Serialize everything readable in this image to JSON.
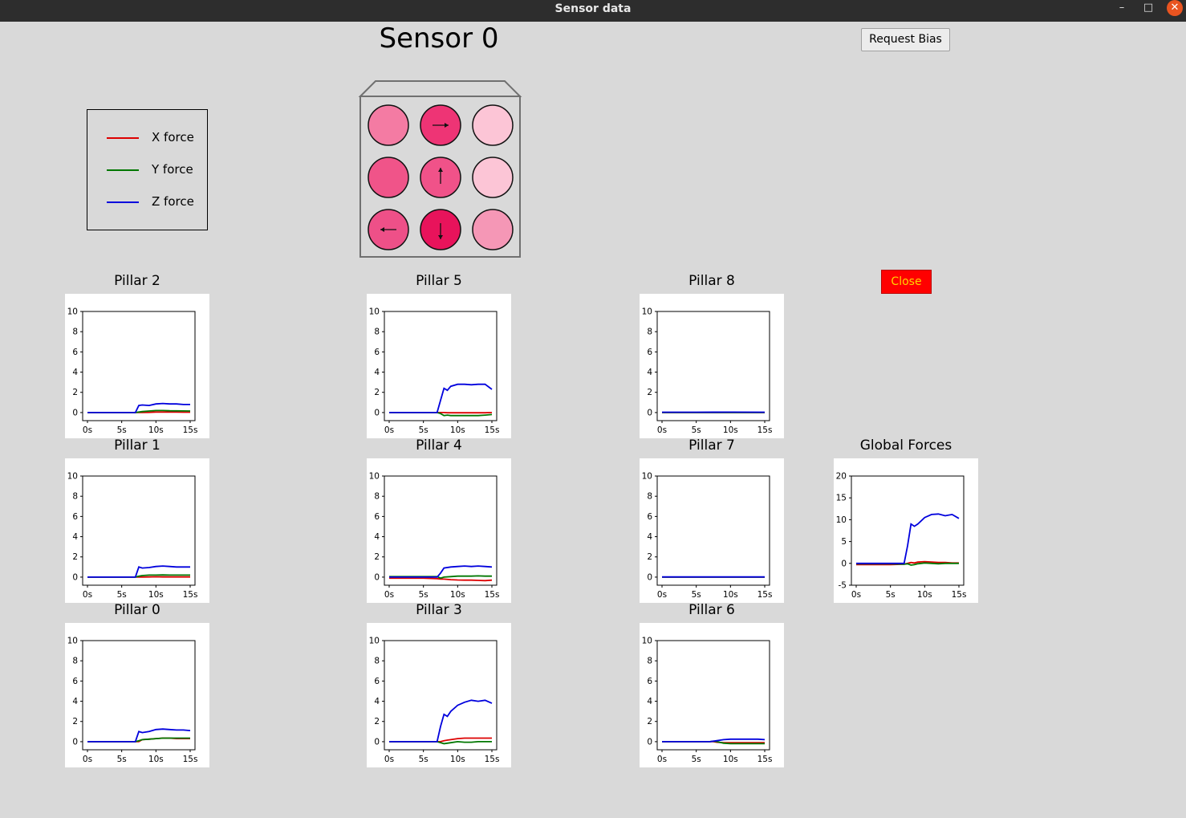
{
  "window": {
    "title": "Sensor data",
    "minimize": "–",
    "maximize": "□",
    "close": "✕"
  },
  "header": {
    "title": "Sensor 0",
    "bias_button": "Request Bias",
    "close_button": "Close"
  },
  "legend": [
    {
      "label": "X force",
      "color": "#dd0000"
    },
    {
      "label": "Y force",
      "color": "#007700"
    },
    {
      "label": "Z force",
      "color": "#0000dd"
    }
  ],
  "pillar_grid": {
    "cells": [
      {
        "row": 0,
        "col": 0,
        "color": "#f47ba3",
        "arrow": "none"
      },
      {
        "row": 0,
        "col": 1,
        "color": "#ee3475",
        "arrow": "right"
      },
      {
        "row": 0,
        "col": 2,
        "color": "#fcc5d6",
        "arrow": "none"
      },
      {
        "row": 1,
        "col": 0,
        "color": "#f05489",
        "arrow": "none"
      },
      {
        "row": 1,
        "col": 1,
        "color": "#f05289",
        "arrow": "up"
      },
      {
        "row": 1,
        "col": 2,
        "color": "#fcc5d6",
        "arrow": "none"
      },
      {
        "row": 2,
        "col": 0,
        "color": "#ee5088",
        "arrow": "left"
      },
      {
        "row": 2,
        "col": 1,
        "color": "#e8135b",
        "arrow": "down"
      },
      {
        "row": 2,
        "col": 2,
        "color": "#f597b6",
        "arrow": "none"
      }
    ]
  },
  "chart_data": [
    {
      "id": "pillar-2",
      "title": "Pillar 2",
      "type": "line",
      "x": [
        0,
        5,
        7,
        7.5,
        8,
        9,
        10,
        11,
        12,
        13,
        14,
        15
      ],
      "xticks": [
        "0s",
        "5s",
        "10s",
        "15s"
      ],
      "ylim": [
        -0.8,
        10
      ],
      "yticks": [
        0,
        2,
        4,
        6,
        8,
        10
      ],
      "series": [
        {
          "color": "#dd0000",
          "values": [
            0,
            0,
            0,
            0,
            0,
            0.02,
            0.05,
            0.05,
            0.04,
            0.04,
            0.03,
            0.03
          ]
        },
        {
          "color": "#007700",
          "values": [
            0,
            0,
            0,
            0.05,
            0.1,
            0.15,
            0.2,
            0.2,
            0.18,
            0.17,
            0.16,
            0.15
          ]
        },
        {
          "color": "#0000dd",
          "values": [
            0,
            0,
            0,
            0.7,
            0.75,
            0.7,
            0.85,
            0.9,
            0.85,
            0.85,
            0.8,
            0.8
          ]
        }
      ]
    },
    {
      "id": "pillar-5",
      "title": "Pillar 5",
      "type": "line",
      "x": [
        0,
        5,
        7,
        7.5,
        8,
        8.5,
        9,
        10,
        11,
        12,
        13,
        14,
        15
      ],
      "xticks": [
        "0s",
        "5s",
        "10s",
        "15s"
      ],
      "ylim": [
        -0.8,
        10
      ],
      "yticks": [
        0,
        2,
        4,
        6,
        8,
        10
      ],
      "series": [
        {
          "color": "#dd0000",
          "values": [
            0,
            0,
            0,
            0,
            0,
            -0.02,
            -0.02,
            -0.02,
            -0.02,
            -0.02,
            -0.02,
            -0.02,
            0
          ]
        },
        {
          "color": "#007700",
          "values": [
            0,
            0,
            0,
            -0.1,
            -0.3,
            -0.25,
            -0.3,
            -0.3,
            -0.3,
            -0.3,
            -0.3,
            -0.25,
            -0.2
          ]
        },
        {
          "color": "#0000dd",
          "values": [
            0,
            0,
            0,
            1.2,
            2.4,
            2.2,
            2.6,
            2.8,
            2.8,
            2.75,
            2.8,
            2.8,
            2.3
          ]
        }
      ]
    },
    {
      "id": "pillar-8",
      "title": "Pillar 8",
      "type": "line",
      "x": [
        0,
        5,
        10,
        15
      ],
      "xticks": [
        "0s",
        "5s",
        "10s",
        "15s"
      ],
      "ylim": [
        -0.8,
        10
      ],
      "yticks": [
        0,
        2,
        4,
        6,
        8,
        10
      ],
      "series": [
        {
          "color": "#dd0000",
          "values": [
            0,
            0,
            0,
            0
          ]
        },
        {
          "color": "#007700",
          "values": [
            0,
            0,
            0,
            0
          ]
        },
        {
          "color": "#0000dd",
          "values": [
            0.03,
            0.03,
            0.04,
            0.03
          ]
        }
      ]
    },
    {
      "id": "pillar-1",
      "title": "Pillar 1",
      "type": "line",
      "x": [
        0,
        5,
        7,
        7.5,
        8,
        9,
        10,
        11,
        12,
        13,
        14,
        15
      ],
      "xticks": [
        "0s",
        "5s",
        "10s",
        "15s"
      ],
      "ylim": [
        -0.8,
        10
      ],
      "yticks": [
        0,
        2,
        4,
        6,
        8,
        10
      ],
      "series": [
        {
          "color": "#dd0000",
          "values": [
            0,
            0,
            0,
            0,
            0,
            0.02,
            0.03,
            0.02,
            0.02,
            0.02,
            0.02,
            0.02
          ]
        },
        {
          "color": "#007700",
          "values": [
            0,
            0,
            0,
            0.1,
            0.15,
            0.2,
            0.2,
            0.22,
            0.2,
            0.2,
            0.2,
            0.2
          ]
        },
        {
          "color": "#0000dd",
          "values": [
            0,
            0,
            0,
            1.0,
            0.9,
            0.95,
            1.05,
            1.1,
            1.05,
            1.0,
            1.0,
            1.0
          ]
        }
      ]
    },
    {
      "id": "pillar-4",
      "title": "Pillar 4",
      "type": "line",
      "x": [
        0,
        5,
        7,
        7.5,
        8,
        9,
        10,
        11,
        12,
        13,
        14,
        15
      ],
      "xticks": [
        "0s",
        "5s",
        "10s",
        "15s"
      ],
      "ylim": [
        -0.8,
        10
      ],
      "yticks": [
        0,
        2,
        4,
        6,
        8,
        10
      ],
      "series": [
        {
          "color": "#dd0000",
          "values": [
            -0.1,
            -0.1,
            -0.15,
            -0.2,
            -0.2,
            -0.25,
            -0.28,
            -0.3,
            -0.3,
            -0.32,
            -0.35,
            -0.3
          ]
        },
        {
          "color": "#007700",
          "values": [
            0.05,
            0.05,
            0.05,
            -0.1,
            0,
            0.05,
            0.1,
            0.1,
            0.1,
            0.12,
            0.1,
            0.1
          ]
        },
        {
          "color": "#0000dd",
          "values": [
            0,
            0,
            0,
            0.4,
            0.9,
            1.0,
            1.05,
            1.1,
            1.05,
            1.1,
            1.05,
            1.0
          ]
        }
      ]
    },
    {
      "id": "pillar-7",
      "title": "Pillar 7",
      "type": "line",
      "x": [
        0,
        5,
        10,
        15
      ],
      "xticks": [
        "0s",
        "5s",
        "10s",
        "15s"
      ],
      "ylim": [
        -0.8,
        10
      ],
      "yticks": [
        0,
        2,
        4,
        6,
        8,
        10
      ],
      "series": [
        {
          "color": "#dd0000",
          "values": [
            0,
            0,
            0,
            0
          ]
        },
        {
          "color": "#007700",
          "values": [
            0,
            0,
            0,
            0
          ]
        },
        {
          "color": "#0000dd",
          "values": [
            0.02,
            0.02,
            0.02,
            0.02
          ]
        }
      ]
    },
    {
      "id": "global-forces",
      "title": "Global Forces",
      "type": "line",
      "x": [
        0,
        5,
        7,
        7.5,
        8,
        8.5,
        9,
        10,
        11,
        12,
        13,
        14,
        15
      ],
      "xticks": [
        "0s",
        "5s",
        "10s",
        "15s"
      ],
      "ylim": [
        -5,
        20
      ],
      "yticks": [
        -5,
        0,
        5,
        10,
        15,
        20
      ],
      "series": [
        {
          "color": "#dd0000",
          "values": [
            -0.3,
            -0.3,
            -0.2,
            0,
            0.2,
            0.1,
            0.3,
            0.4,
            0.3,
            0.2,
            0.2,
            0.1,
            0.1
          ]
        },
        {
          "color": "#007700",
          "values": [
            -0.1,
            -0.1,
            -0.2,
            -0.1,
            -0.4,
            -0.3,
            -0.1,
            0.1,
            0,
            -0.1,
            0,
            0,
            0
          ]
        },
        {
          "color": "#0000dd",
          "values": [
            0,
            0,
            0,
            4,
            9,
            8.5,
            9,
            10.5,
            11.2,
            11.3,
            10.9,
            11.2,
            10.3
          ]
        }
      ]
    },
    {
      "id": "pillar-0",
      "title": "Pillar 0",
      "type": "line",
      "x": [
        0,
        5,
        7,
        7.5,
        8,
        9,
        10,
        11,
        12,
        13,
        14,
        15
      ],
      "xticks": [
        "0s",
        "5s",
        "10s",
        "15s"
      ],
      "ylim": [
        -0.8,
        10
      ],
      "yticks": [
        0,
        2,
        4,
        6,
        8,
        10
      ],
      "series": [
        {
          "color": "#dd0000",
          "values": [
            0,
            0,
            0,
            0,
            0.2,
            0.25,
            0.3,
            0.35,
            0.35,
            0.3,
            0.3,
            0.3
          ]
        },
        {
          "color": "#007700",
          "values": [
            0,
            0,
            0,
            0.1,
            0.2,
            0.25,
            0.3,
            0.35,
            0.35,
            0.35,
            0.35,
            0.35
          ]
        },
        {
          "color": "#0000dd",
          "values": [
            0,
            0,
            0,
            1.0,
            0.9,
            1.0,
            1.2,
            1.25,
            1.2,
            1.15,
            1.15,
            1.1
          ]
        }
      ]
    },
    {
      "id": "pillar-3",
      "title": "Pillar 3",
      "type": "line",
      "x": [
        0,
        5,
        7,
        7.5,
        8,
        8.5,
        9,
        10,
        11,
        12,
        13,
        14,
        15
      ],
      "xticks": [
        "0s",
        "5s",
        "10s",
        "15s"
      ],
      "ylim": [
        -0.8,
        10
      ],
      "yticks": [
        0,
        2,
        4,
        6,
        8,
        10
      ],
      "series": [
        {
          "color": "#dd0000",
          "values": [
            0,
            0,
            0,
            0,
            0.1,
            0.15,
            0.2,
            0.3,
            0.35,
            0.35,
            0.35,
            0.35,
            0.35
          ]
        },
        {
          "color": "#007700",
          "values": [
            0,
            0,
            0,
            -0.1,
            -0.2,
            -0.15,
            -0.1,
            0,
            -0.05,
            -0.05,
            0,
            0,
            0
          ]
        },
        {
          "color": "#0000dd",
          "values": [
            0,
            0,
            0,
            1.5,
            2.7,
            2.5,
            3.0,
            3.6,
            3.9,
            4.1,
            4.0,
            4.1,
            3.8
          ]
        }
      ]
    },
    {
      "id": "pillar-6",
      "title": "Pillar 6",
      "type": "line",
      "x": [
        0,
        5,
        7,
        7.5,
        8,
        9,
        10,
        11,
        12,
        13,
        14,
        15
      ],
      "xticks": [
        "0s",
        "5s",
        "10s",
        "15s"
      ],
      "ylim": [
        -0.8,
        10
      ],
      "yticks": [
        0,
        2,
        4,
        6,
        8,
        10
      ],
      "series": [
        {
          "color": "#dd0000",
          "values": [
            0,
            0,
            0,
            0,
            -0.05,
            -0.1,
            -0.1,
            -0.1,
            -0.1,
            -0.1,
            -0.1,
            -0.1
          ]
        },
        {
          "color": "#007700",
          "values": [
            0,
            0,
            0,
            0.05,
            0,
            -0.15,
            -0.2,
            -0.2,
            -0.2,
            -0.2,
            -0.2,
            -0.2
          ]
        },
        {
          "color": "#0000dd",
          "values": [
            0,
            0,
            0,
            0.05,
            0.1,
            0.2,
            0.25,
            0.25,
            0.25,
            0.25,
            0.25,
            0.2
          ]
        }
      ]
    }
  ]
}
